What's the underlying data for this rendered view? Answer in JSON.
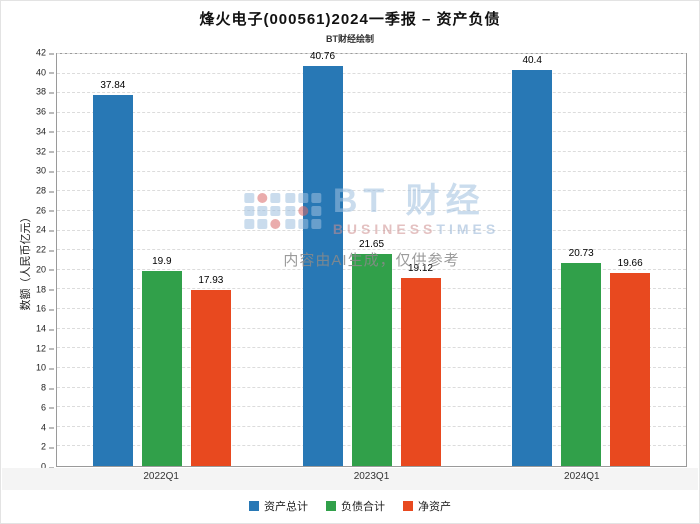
{
  "title": "烽火电子(000561)2024一季报 – 资产负债",
  "subtitle": "BT财经绘制",
  "watermark": {
    "brand": "BT 财经",
    "brand_sub1": "BUSINESS",
    "brand_sub2": "TIMES",
    "disclaimer": "内容由AI生成，仅供参考"
  },
  "chart_data": {
    "type": "bar",
    "categories": [
      "2022Q1",
      "2023Q1",
      "2024Q1"
    ],
    "series": [
      {
        "name": "资产总计",
        "color": "#2878b5",
        "values": [
          37.84,
          40.76,
          40.4
        ]
      },
      {
        "name": "负债合计",
        "color": "#31a04a",
        "values": [
          19.9,
          21.65,
          20.73
        ]
      },
      {
        "name": "净资产",
        "color": "#e8491f",
        "values": [
          17.93,
          19.12,
          19.66
        ]
      }
    ],
    "xlabel": "",
    "ylabel": "数额（人民币亿元）",
    "ylim": [
      0,
      42
    ],
    "ytick_step": 2,
    "grid": true,
    "legend_position": "bottom"
  }
}
